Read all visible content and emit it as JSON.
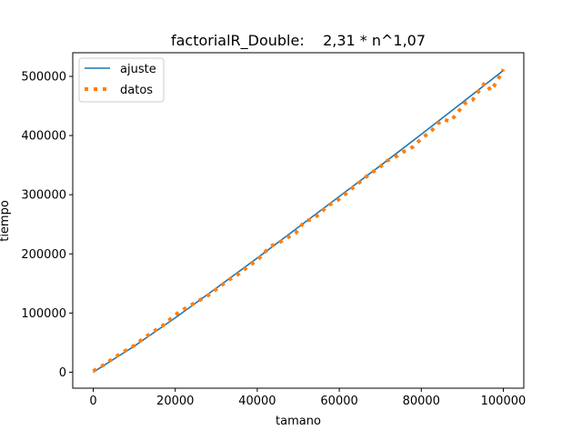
{
  "chart_data": {
    "type": "line",
    "title": "factorialR_Double:    2,31 * n^1,07",
    "xlabel": "tamano",
    "ylabel": "tiempo",
    "xlim": [
      -5000,
      105000
    ],
    "ylim": [
      -27000,
      540000
    ],
    "xticks": [
      0,
      20000,
      40000,
      60000,
      80000,
      100000
    ],
    "xtick_labels": [
      "0",
      "20000",
      "40000",
      "60000",
      "80000",
      "100000"
    ],
    "yticks": [
      0,
      100000,
      200000,
      300000,
      400000,
      500000
    ],
    "ytick_labels": [
      "0",
      "100000",
      "200000",
      "300000",
      "400000",
      "500000"
    ],
    "grid": false,
    "legend": {
      "position": "top-left",
      "entries": [
        {
          "label": "ajuste",
          "style": "solid",
          "color": "#1f77b4"
        },
        {
          "label": "datos",
          "style": "dotted",
          "color": "#ff7f0e"
        }
      ]
    },
    "series": [
      {
        "name": "ajuste",
        "color": "#1f77b4",
        "style": "solid",
        "x": [
          0,
          10000,
          20000,
          30000,
          40000,
          50000,
          60000,
          70000,
          80000,
          90000,
          100000
        ],
        "y": [
          0,
          44000,
          92000,
          142000,
          193000,
          245000,
          297000,
          349000,
          402000,
          456000,
          510000
        ]
      },
      {
        "name": "datos",
        "color": "#ff7f0e",
        "style": "dotted",
        "x": [
          0,
          2500,
          5000,
          7500,
          10000,
          12000,
          14500,
          17000,
          19000,
          21000,
          23500,
          26000,
          28500,
          30500,
          33000,
          35500,
          38000,
          39500,
          41000,
          43000,
          45500,
          47500,
          49500,
          51500,
          53500,
          55500,
          57000,
          59500,
          61500,
          63500,
          65500,
          67500,
          69500,
          71500,
          73500,
          75500,
          78000,
          80500,
          82000,
          84000,
          85500,
          87000,
          88500,
          90500,
          92500,
          94000,
          95500,
          97000,
          98500,
          100000
        ],
        "y": [
          2000,
          12000,
          24000,
          35000,
          45000,
          56000,
          68000,
          79000,
          91000,
          102000,
          112000,
          122000,
          132000,
          143000,
          156000,
          166000,
          180000,
          187000,
          196000,
          212000,
          220000,
          228000,
          236000,
          255000,
          259000,
          269000,
          281000,
          290000,
          301000,
          313000,
          324000,
          336000,
          344000,
          357000,
          363000,
          372000,
          381000,
          398000,
          404000,
          420000,
          427000,
          424000,
          435000,
          454000,
          460000,
          475000,
          489000,
          476000,
          492000,
          512000
        ]
      }
    ]
  }
}
